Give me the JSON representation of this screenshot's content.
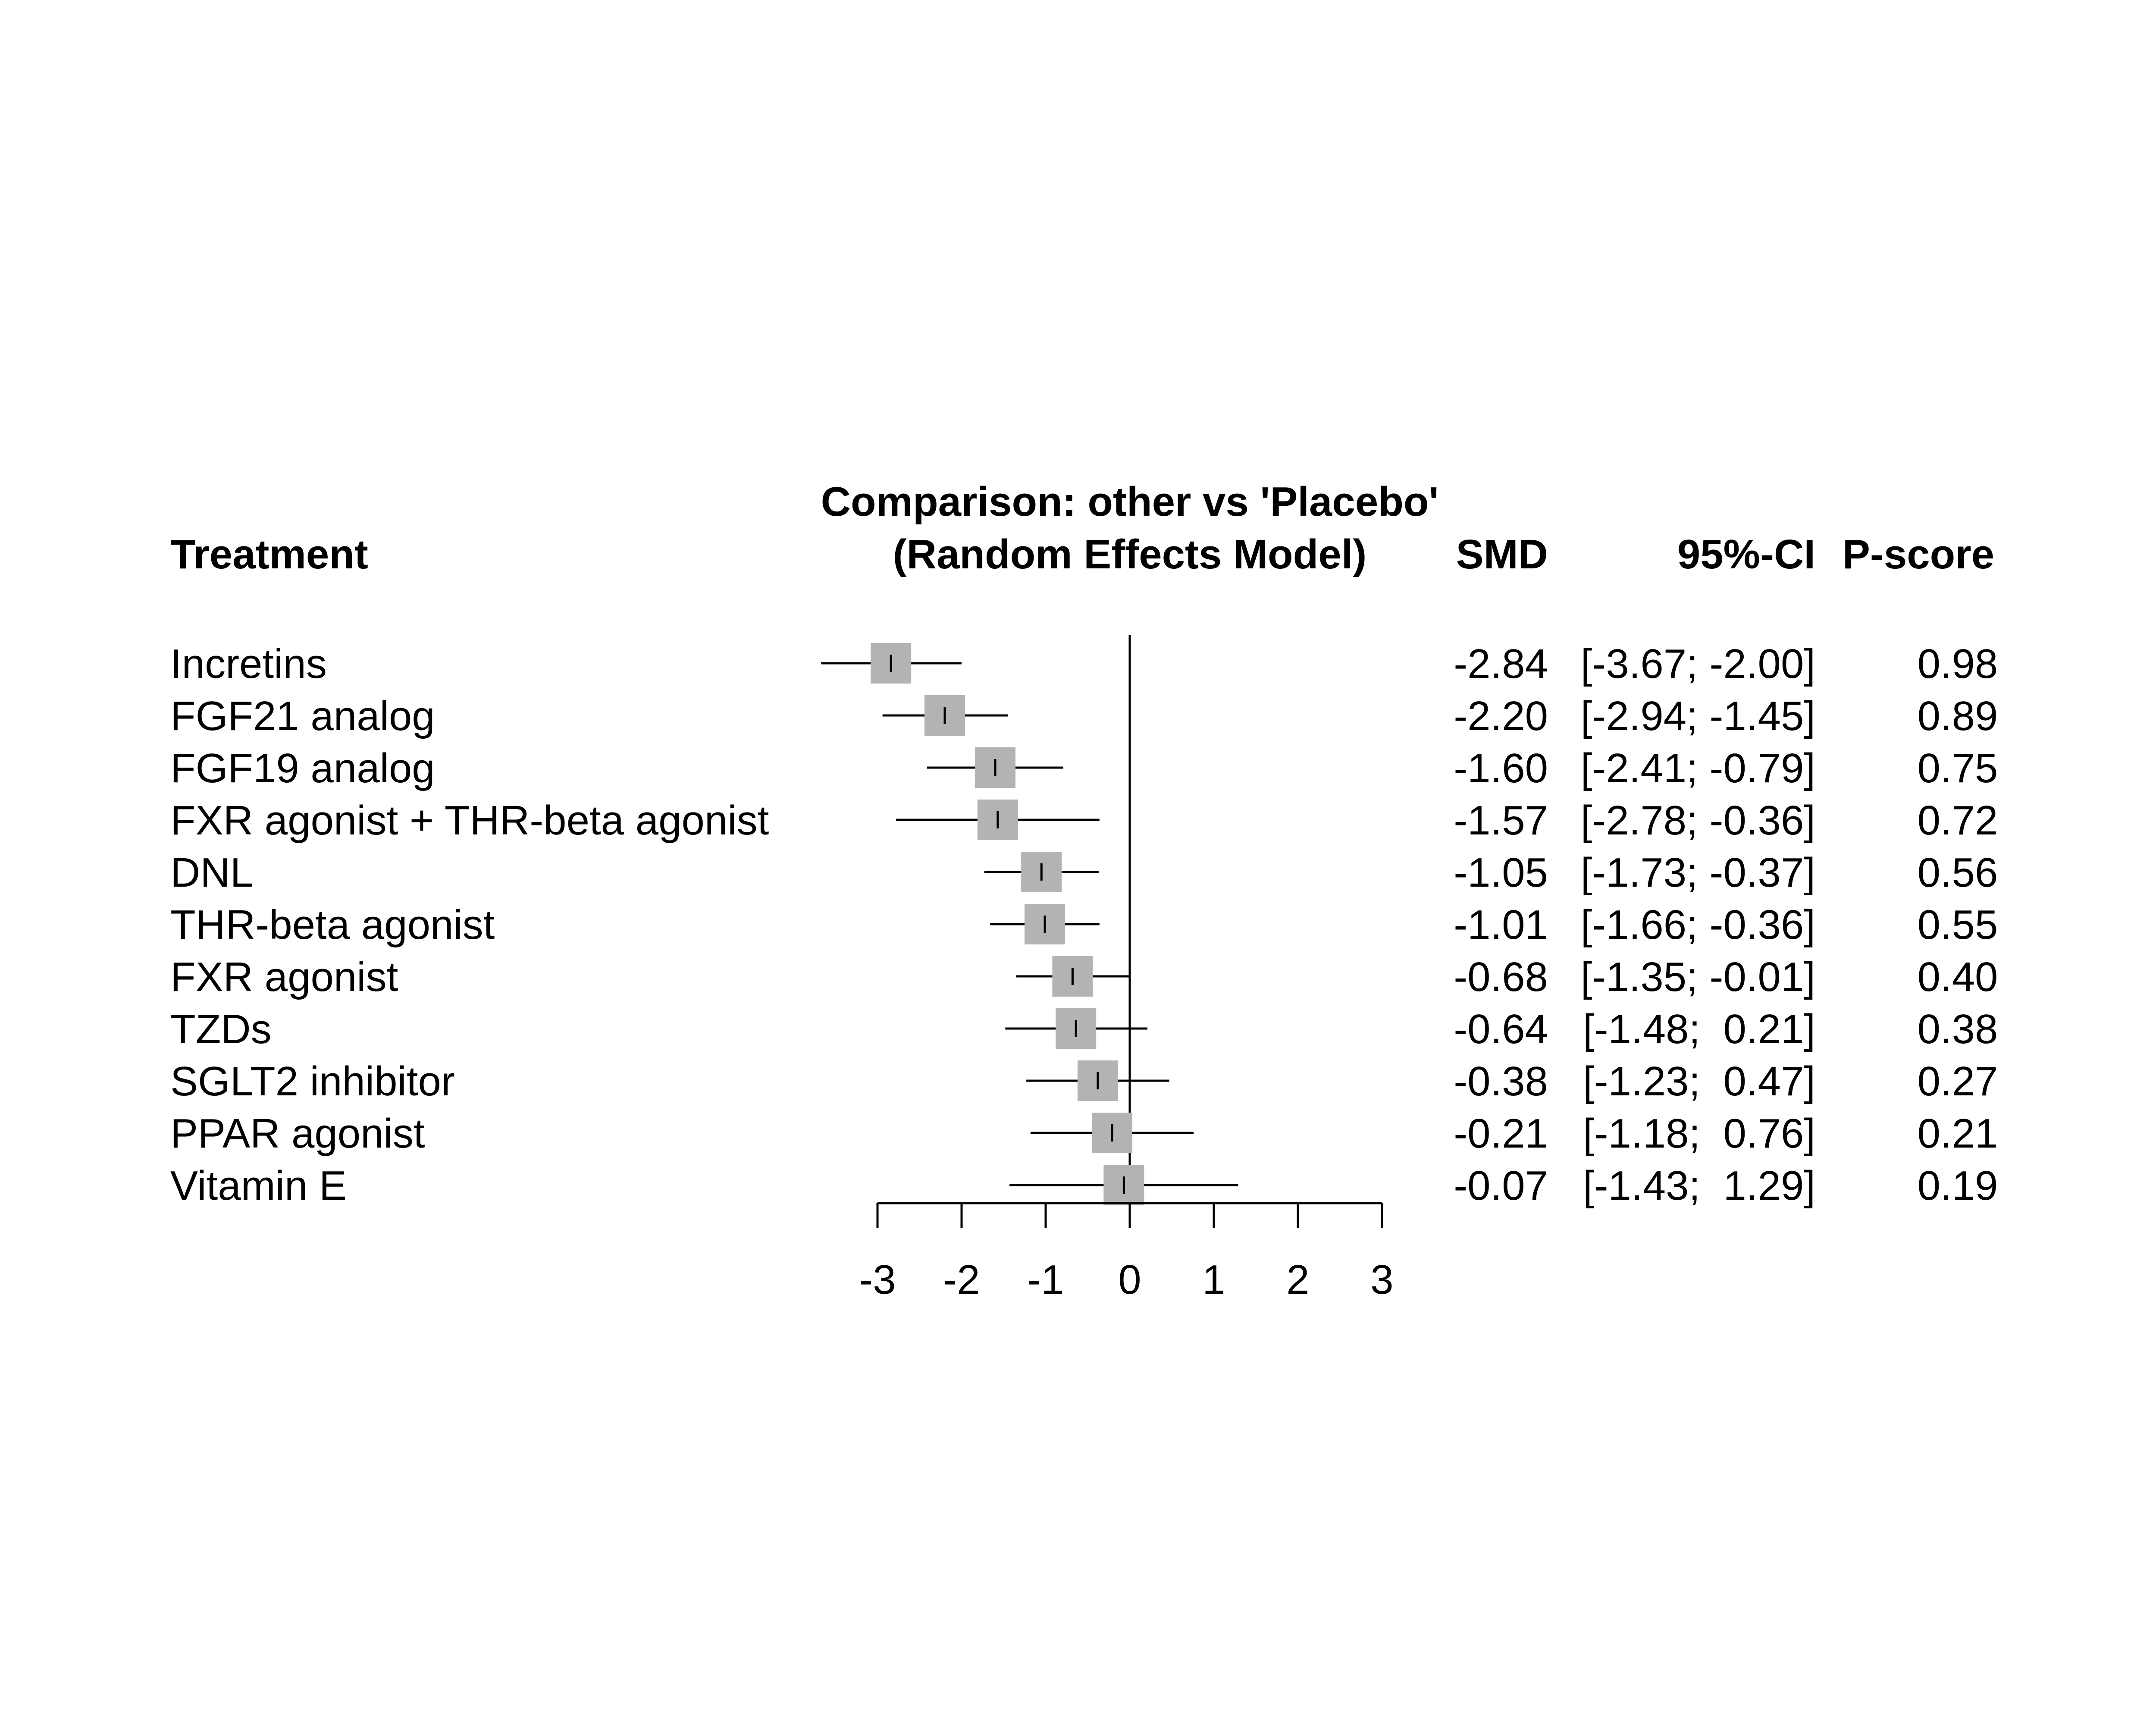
{
  "chart_data": {
    "type": "forest",
    "title": "Comparison: other vs 'Placebo'",
    "subtitle": "(Random Effects Model)",
    "headers": {
      "treatment": "Treatment",
      "smd": "SMD",
      "ci": "95%-CI",
      "pscore": "P-score"
    },
    "xlim": [
      -3,
      3
    ],
    "ticks": [
      -3,
      -2,
      -1,
      0,
      1,
      2,
      3
    ],
    "tick_labels": [
      "-3",
      "-2",
      "-1",
      "0",
      "1",
      "2",
      "3"
    ],
    "reference_line": 0,
    "box_color": "#b3b3b3",
    "rows": [
      {
        "treatment": "Incretins",
        "smd": -2.84,
        "lower": -3.67,
        "upper": -2.0,
        "smd_text": "-2.84",
        "ci_text": "[-3.67; -2.00]",
        "pscore": "0.98"
      },
      {
        "treatment": "FGF21 analog",
        "smd": -2.2,
        "lower": -2.94,
        "upper": -1.45,
        "smd_text": "-2.20",
        "ci_text": "[-2.94; -1.45]",
        "pscore": "0.89"
      },
      {
        "treatment": "FGF19 analog",
        "smd": -1.6,
        "lower": -2.41,
        "upper": -0.79,
        "smd_text": "-1.60",
        "ci_text": "[-2.41; -0.79]",
        "pscore": "0.75"
      },
      {
        "treatment": "FXR agonist + THR-beta agonist",
        "smd": -1.57,
        "lower": -2.78,
        "upper": -0.36,
        "smd_text": "-1.57",
        "ci_text": "[-2.78; -0.36]",
        "pscore": "0.72"
      },
      {
        "treatment": "DNL",
        "smd": -1.05,
        "lower": -1.73,
        "upper": -0.37,
        "smd_text": "-1.05",
        "ci_text": "[-1.73; -0.37]",
        "pscore": "0.56"
      },
      {
        "treatment": "THR-beta agonist",
        "smd": -1.01,
        "lower": -1.66,
        "upper": -0.36,
        "smd_text": "-1.01",
        "ci_text": "[-1.66; -0.36]",
        "pscore": "0.55"
      },
      {
        "treatment": "FXR agonist",
        "smd": -0.68,
        "lower": -1.35,
        "upper": -0.01,
        "smd_text": "-0.68",
        "ci_text": "[-1.35; -0.01]",
        "pscore": "0.40"
      },
      {
        "treatment": "TZDs",
        "smd": -0.64,
        "lower": -1.48,
        "upper": 0.21,
        "smd_text": "-0.64",
        "ci_text": "[-1.48;  0.21]",
        "pscore": "0.38"
      },
      {
        "treatment": "SGLT2 inhibitor",
        "smd": -0.38,
        "lower": -1.23,
        "upper": 0.47,
        "smd_text": "-0.38",
        "ci_text": "[-1.23;  0.47]",
        "pscore": "0.27"
      },
      {
        "treatment": "PPAR agonist",
        "smd": -0.21,
        "lower": -1.18,
        "upper": 0.76,
        "smd_text": "-0.21",
        "ci_text": "[-1.18;  0.76]",
        "pscore": "0.21"
      },
      {
        "treatment": "Vitamin E",
        "smd": -0.07,
        "lower": -1.43,
        "upper": 1.29,
        "smd_text": "-0.07",
        "ci_text": "[-1.43;  1.29]",
        "pscore": "0.19"
      }
    ]
  }
}
